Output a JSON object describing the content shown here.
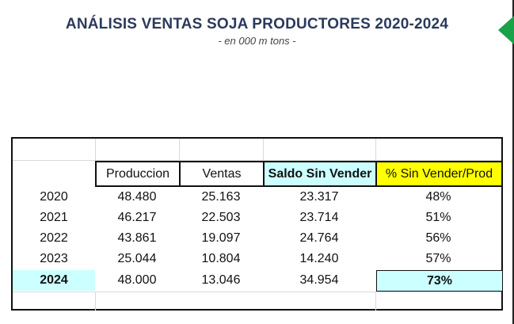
{
  "report": {
    "title": "ANÁLISIS VENTAS SOJA PRODUCTORES 2020-2024",
    "subtitle": "- en 000 m tons -"
  },
  "table": {
    "headers": [
      "Produccion",
      "Ventas",
      "Saldo Sin Vender",
      "% Sin Vender/Prod"
    ],
    "rows": [
      {
        "year": "2020",
        "produccion": "48.480",
        "ventas": "25.163",
        "saldo": "23.317",
        "pct": "48%"
      },
      {
        "year": "2021",
        "produccion": "46.217",
        "ventas": "22.503",
        "saldo": "23.714",
        "pct": "51%"
      },
      {
        "year": "2022",
        "produccion": "43.861",
        "ventas": "19.097",
        "saldo": "24.764",
        "pct": "56%"
      },
      {
        "year": "2023",
        "produccion": "25.044",
        "ventas": "10.804",
        "saldo": "14.240",
        "pct": "57%"
      },
      {
        "year": "2024",
        "produccion": "48.000",
        "ventas": "13.046",
        "saldo": "34.954",
        "pct": "73%"
      }
    ]
  },
  "colors": {
    "title": "#2b3a5c",
    "highlight_cyan": "#ccffff",
    "highlight_yellow": "#ffff00",
    "arrow_green": "#1aa24a"
  },
  "icons": {
    "corner_marker": "green-triangle-icon"
  }
}
